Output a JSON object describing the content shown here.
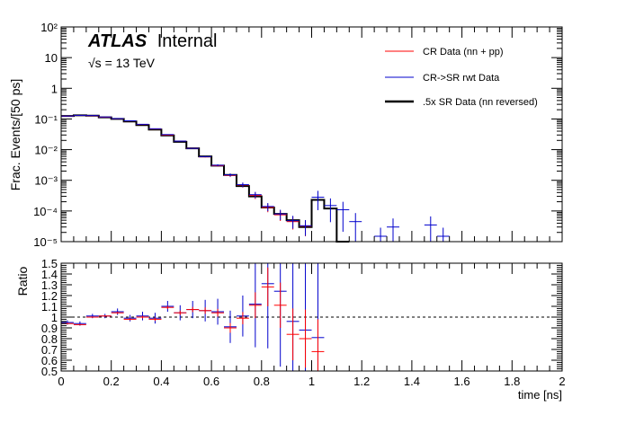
{
  "chart_data": [
    {
      "type": "histogram",
      "panel": "main",
      "label_atlas": "ATLAS",
      "label_status": "Internal",
      "label_energy": "√s = 13 TeV",
      "ylabel": "Frac. Events/[50 ps]",
      "xlim": [
        0,
        2
      ],
      "ylim": [
        1e-05,
        100
      ],
      "yscale": "log",
      "y_ticklabels": [
        "10⁻⁵",
        "10⁻⁴",
        "10⁻³",
        "10⁻²",
        "10⁻¹",
        "1",
        "10",
        "10²"
      ],
      "bin_width": 0.05,
      "legend_position": "top-right",
      "series": [
        {
          "name": "CR Data (nn + pp)",
          "style": "error-bars",
          "color": "#ff0000",
          "values": [
            0.123,
            0.13,
            0.128,
            0.114,
            0.102,
            0.086,
            0.066,
            0.047,
            0.03,
            0.019,
            0.011,
            0.0058,
            0.003,
            0.00145,
            0.0007,
            0.00032,
            0.00013,
            7.5e-05,
            4.5e-05,
            3.2e-05
          ]
        },
        {
          "name": "CR->SR rwt Data",
          "style": "error-bars",
          "color": "#0000cc",
          "values": [
            0.124,
            0.131,
            0.129,
            0.116,
            0.103,
            0.087,
            0.067,
            0.048,
            0.031,
            0.019,
            0.011,
            0.0059,
            0.0031,
            0.0015,
            0.00072,
            0.00034,
            0.00014,
            8e-05,
            4.8e-05,
            3.3e-05,
            0.00028,
            0.00015,
            0.00011,
            4.5e-05,
            0,
            1.5e-05,
            3e-05,
            0,
            0,
            3.5e-05,
            1.5e-05
          ]
        },
        {
          "name": ".5x SR Data (nn reversed)",
          "style": "step",
          "color": "#000000",
          "values": [
            0.125,
            0.131,
            0.128,
            0.113,
            0.1,
            0.083,
            0.063,
            0.045,
            0.029,
            0.018,
            0.011,
            0.006,
            0.003,
            0.0015,
            0.00065,
            0.0003,
            0.00013,
            8e-05,
            5e-05,
            3e-05,
            0.00023,
            0.00012,
            1e-05
          ]
        }
      ]
    },
    {
      "type": "ratio",
      "panel": "ratio",
      "ylabel": "Ratio",
      "xlabel": "time [ns]",
      "xlim": [
        0,
        2
      ],
      "ylim": [
        0.5,
        1.5
      ],
      "reference_line": 1,
      "x_ticklabels": [
        "0",
        "0.2",
        "0.4",
        "0.6",
        "0.8",
        "1",
        "1.2",
        "1.4",
        "1.6",
        "1.8",
        "2"
      ],
      "y_ticklabels": [
        "0.5",
        "0.6",
        "0.7",
        "0.8",
        "0.9",
        "1",
        "1.1",
        "1.2",
        "1.3",
        "1.4",
        "1.5"
      ],
      "points": [
        {
          "x": 0.025,
          "red": 0.94,
          "blue": 0.95,
          "err": 0.02
        },
        {
          "x": 0.075,
          "red": 0.93,
          "blue": 0.94,
          "err": 0.02
        },
        {
          "x": 0.125,
          "red": 1.0,
          "blue": 1.01,
          "err": 0.02
        },
        {
          "x": 0.175,
          "red": 1.01,
          "blue": 1.01,
          "err": 0.02
        },
        {
          "x": 0.225,
          "red": 1.04,
          "blue": 1.05,
          "err": 0.03
        },
        {
          "x": 0.275,
          "red": 0.98,
          "blue": 0.99,
          "err": 0.03
        },
        {
          "x": 0.325,
          "red": 1.0,
          "blue": 1.01,
          "err": 0.04
        },
        {
          "x": 0.375,
          "red": 0.98,
          "blue": 0.99,
          "err": 0.05
        },
        {
          "x": 0.425,
          "red": 1.09,
          "blue": 1.1,
          "err": 0.05
        },
        {
          "x": 0.475,
          "red": 1.04,
          "blue": 1.04,
          "err": 0.07
        },
        {
          "x": 0.525,
          "red": 1.07,
          "blue": 1.07,
          "err": 0.08
        },
        {
          "x": 0.575,
          "red": 1.06,
          "blue": 1.06,
          "err": 0.1
        },
        {
          "x": 0.625,
          "red": 1.04,
          "blue": 1.05,
          "err": 0.12
        },
        {
          "x": 0.675,
          "red": 0.9,
          "blue": 0.91,
          "err": 0.15
        },
        {
          "x": 0.725,
          "red": 0.99,
          "blue": 1.01,
          "err": 0.19
        },
        {
          "x": 0.775,
          "red": 1.11,
          "blue": 1.12,
          "err": 0.4
        },
        {
          "x": 0.825,
          "red": 1.28,
          "blue": 1.31,
          "err": 0.6
        },
        {
          "x": 0.875,
          "red": 1.11,
          "blue": 1.24,
          "err": 0.7
        },
        {
          "x": 0.925,
          "red": 0.84,
          "blue": 0.96,
          "err": 0.8
        },
        {
          "x": 0.975,
          "red": 0.8,
          "blue": 0.88,
          "err": 0.9
        },
        {
          "x": 1.025,
          "red": 0.68,
          "blue": 0.81,
          "err": 1.0
        }
      ]
    }
  ]
}
